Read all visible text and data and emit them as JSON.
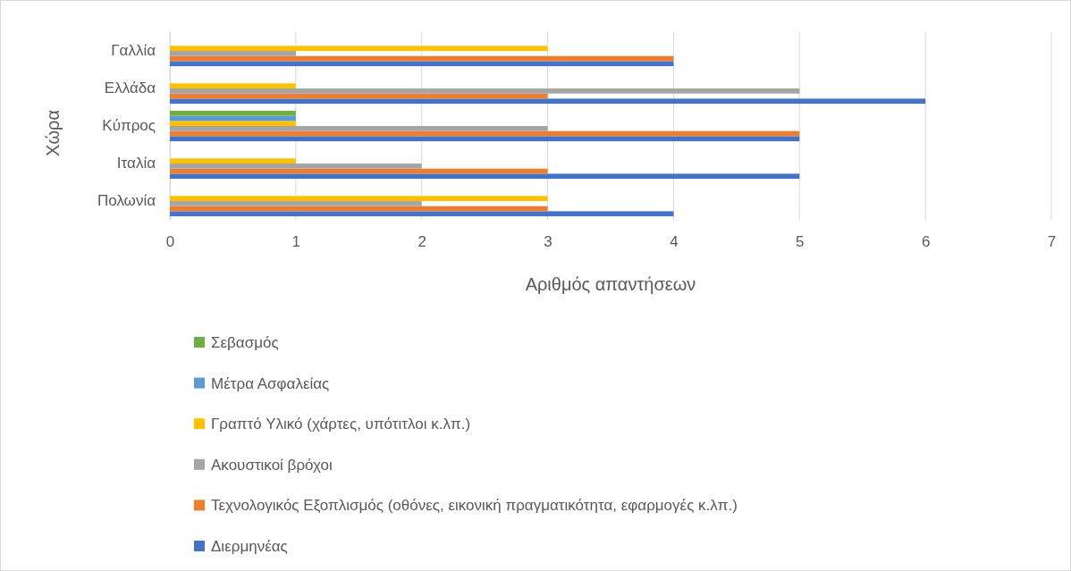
{
  "chart_data": {
    "type": "bar",
    "orientation": "horizontal",
    "ylabel": "Χώρα",
    "xlabel": "Αριθμός απαντήσεων",
    "categories": [
      "Γαλλία",
      "Ελλάδα",
      "Κύπρος",
      "Ιταλία",
      "Πολωνία"
    ],
    "series": [
      {
        "name": "Διερμηνέας",
        "color": "#4472c4",
        "values": [
          4,
          6,
          5,
          5,
          4
        ]
      },
      {
        "name": "Τεχνολογικός Εξοπλισμός (οθόνες, εικονική πραγματικότητα, εφαρμογές κ.λπ.)",
        "color": "#ed7d31",
        "values": [
          4,
          3,
          5,
          3,
          3
        ]
      },
      {
        "name": "Ακουστικοί βρόχοι",
        "color": "#a5a5a5",
        "values": [
          1,
          5,
          3,
          2,
          2
        ]
      },
      {
        "name": "Γραπτό Υλικό (χάρτες, υπότιτλοι κ.λπ.)",
        "color": "#ffc000",
        "values": [
          3,
          1,
          1,
          1,
          3
        ]
      },
      {
        "name": "Μέτρα Ασφαλείας",
        "color": "#5b9bd5",
        "values": [
          null,
          null,
          1,
          null,
          null
        ]
      },
      {
        "name": "Σεβασμός",
        "color": "#70ad47",
        "values": [
          null,
          null,
          1,
          null,
          null
        ]
      }
    ],
    "xlim": [
      0,
      7
    ],
    "xticks": [
      0,
      1,
      2,
      3,
      4,
      5,
      6,
      7
    ],
    "grid": "x",
    "legend": "bottom"
  }
}
